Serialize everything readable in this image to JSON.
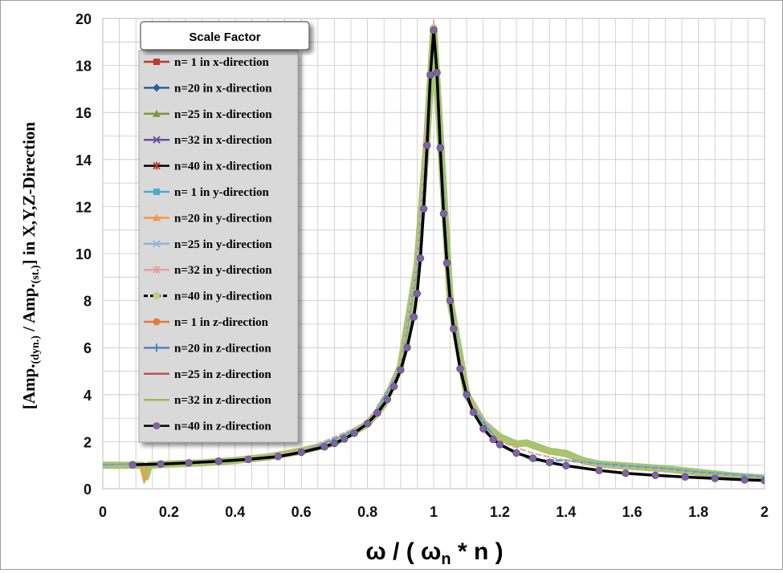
{
  "chart_data": {
    "type": "line",
    "xlabel": {
      "pre": "ω / ( ω",
      "sub": "n",
      "post": " * n )"
    },
    "ylabel": {
      "a": "[Amp.",
      "b": "(dyn.)",
      "c": " / Amp.",
      "d": "(st.)",
      "e": "] in  X,Y,Z-Direction"
    },
    "xlim": [
      0,
      2
    ],
    "ylim": [
      0,
      20
    ],
    "xticks": [
      "0",
      "0.2",
      "0.4",
      "0.6",
      "0.8",
      "1",
      "1.2",
      "1.4",
      "1.6",
      "1.8",
      "2"
    ],
    "yticks": [
      "0",
      "2",
      "4",
      "6",
      "8",
      "10",
      "12",
      "14",
      "16",
      "18",
      "20"
    ],
    "grid": true,
    "legend": {
      "title": "Scale Factor",
      "placement": "upper-left",
      "entries": [
        {
          "label": "n= 1 in x-direction",
          "color": "#c0392b",
          "marker": "square",
          "dashed": false
        },
        {
          "label": "n=20 in x-direction",
          "color": "#2e5f9e",
          "marker": "diamond",
          "dashed": false
        },
        {
          "label": "n=25 in x-direction",
          "color": "#7a9a35",
          "marker": "triangle",
          "dashed": false
        },
        {
          "label": "n=32 in x-direction",
          "color": "#6b4c9a",
          "marker": "x",
          "dashed": false
        },
        {
          "label": "n=40 in x-direction",
          "color": "#000000",
          "marker": "star",
          "dashed": false
        },
        {
          "label": "n= 1 in y-direction",
          "color": "#4bacc6",
          "marker": "square",
          "dashed": false
        },
        {
          "label": "n=20 in y-direction",
          "color": "#f79646",
          "marker": "triangle",
          "dashed": false
        },
        {
          "label": "n=25 in y-direction",
          "color": "#95b3d7",
          "marker": "x",
          "dashed": false
        },
        {
          "label": "n=32 in y-direction",
          "color": "#e6a0a0",
          "marker": "star",
          "dashed": false
        },
        {
          "label": "n=40 in y-direction",
          "color": "#000000",
          "marker": "circle-green",
          "dashed": true
        },
        {
          "label": "n= 1 in z-direction",
          "color": "#e07b39",
          "marker": "circle",
          "dashed": false
        },
        {
          "label": "n=20 in z-direction",
          "color": "#4f81bd",
          "marker": "plus",
          "dashed": false
        },
        {
          "label": "n=25 in z-direction",
          "color": "#c0504d",
          "marker": "none",
          "dashed": false
        },
        {
          "label": "n=32 in z-direction",
          "color": "#9bbb59",
          "marker": "none",
          "dashed": false
        },
        {
          "label": "n=40 in z-direction",
          "color": "#000000",
          "marker": "circle-purple",
          "dashed": false
        }
      ]
    },
    "series": [
      {
        "name": "n=32 in z-direction",
        "color": "#a9c46c",
        "width": 9,
        "x": [
          0,
          0.1,
          0.12,
          0.13,
          0.14,
          0.2,
          0.3,
          0.4,
          0.5,
          0.6,
          0.7,
          0.8,
          0.85,
          0.9,
          0.95,
          0.98,
          1.0,
          1.02,
          1.05,
          1.1,
          1.15,
          1.2,
          1.25,
          1.28,
          1.3,
          1.35,
          1.4,
          1.45,
          1.5,
          1.6,
          1.7,
          1.8,
          1.9,
          2.0
        ],
        "y": [
          1.0,
          1.0,
          1.0,
          0.5,
          1.0,
          1.05,
          1.1,
          1.2,
          1.35,
          1.6,
          1.95,
          2.75,
          3.6,
          5.2,
          9.5,
          15,
          19.6,
          15,
          8,
          4,
          2.8,
          2.2,
          1.9,
          1.95,
          1.85,
          1.6,
          1.5,
          1.2,
          1.05,
          0.95,
          0.85,
          0.7,
          0.55,
          0.45
        ]
      },
      {
        "name": "n= 1 in y-direction",
        "color": "#4bacc6",
        "width": 3,
        "dashed": true,
        "x": [
          0,
          0.2,
          0.4,
          0.6,
          0.8,
          0.9,
          0.95,
          0.98,
          1.0,
          1.02,
          1.05,
          1.1,
          1.2,
          1.3,
          1.4,
          1.5,
          1.6,
          1.7,
          1.8,
          1.9,
          2.0
        ],
        "y": [
          1.0,
          1.05,
          1.2,
          1.55,
          2.7,
          5.1,
          9.5,
          15,
          19.5,
          15,
          8,
          3.8,
          1.9,
          1.2,
          1.2,
          1.05,
          0.95,
          0.85,
          0.7,
          0.6,
          0.5
        ]
      },
      {
        "name": "n=32 in y-direction",
        "color": "#e6a0a0",
        "width": 2,
        "dashed": true,
        "x": [
          0,
          0.2,
          0.4,
          0.6,
          0.8,
          0.9,
          0.95,
          1.0,
          1.05,
          1.1,
          1.2,
          1.3,
          1.4,
          1.5,
          1.6,
          1.7,
          1.8,
          1.9,
          2.0
        ],
        "y": [
          0.95,
          1.05,
          1.2,
          1.6,
          2.8,
          5.2,
          9.6,
          19.9,
          7.8,
          4.0,
          2.0,
          1.5,
          1.2,
          1.0,
          0.9,
          0.8,
          0.65,
          0.55,
          0.45
        ]
      },
      {
        "name": "n=20 in y-direction",
        "color": "#f79646",
        "width": 2,
        "x": [
          0.115,
          0.125,
          0.135
        ],
        "y": [
          1.0,
          0.25,
          1.0
        ]
      },
      {
        "name": "n=40 in z-direction",
        "color": "#000000",
        "width": 3.5,
        "markers": true,
        "x": [
          0.09,
          0.175,
          0.26,
          0.35,
          0.44,
          0.53,
          0.6,
          0.67,
          0.7,
          0.73,
          0.76,
          0.8,
          0.83,
          0.86,
          0.88,
          0.9,
          0.92,
          0.94,
          0.95,
          0.96,
          0.97,
          0.98,
          0.99,
          1.0,
          1.01,
          1.02,
          1.03,
          1.04,
          1.05,
          1.06,
          1.08,
          1.1,
          1.12,
          1.15,
          1.18,
          1.2,
          1.25,
          1.3,
          1.35,
          1.4,
          1.5,
          1.58,
          1.67,
          1.76,
          1.85,
          1.94,
          2.0
        ],
        "y": [
          1.02,
          1.05,
          1.1,
          1.17,
          1.25,
          1.37,
          1.55,
          1.78,
          1.93,
          2.12,
          2.36,
          2.78,
          3.22,
          3.8,
          4.35,
          5.05,
          6.0,
          7.3,
          8.3,
          9.8,
          11.9,
          14.6,
          17.6,
          19.5,
          17.7,
          14.5,
          11.7,
          9.6,
          8.0,
          6.8,
          5.1,
          4.0,
          3.25,
          2.55,
          2.1,
          1.88,
          1.52,
          1.3,
          1.12,
          0.98,
          0.78,
          0.66,
          0.57,
          0.5,
          0.44,
          0.38,
          0.35
        ]
      }
    ]
  }
}
